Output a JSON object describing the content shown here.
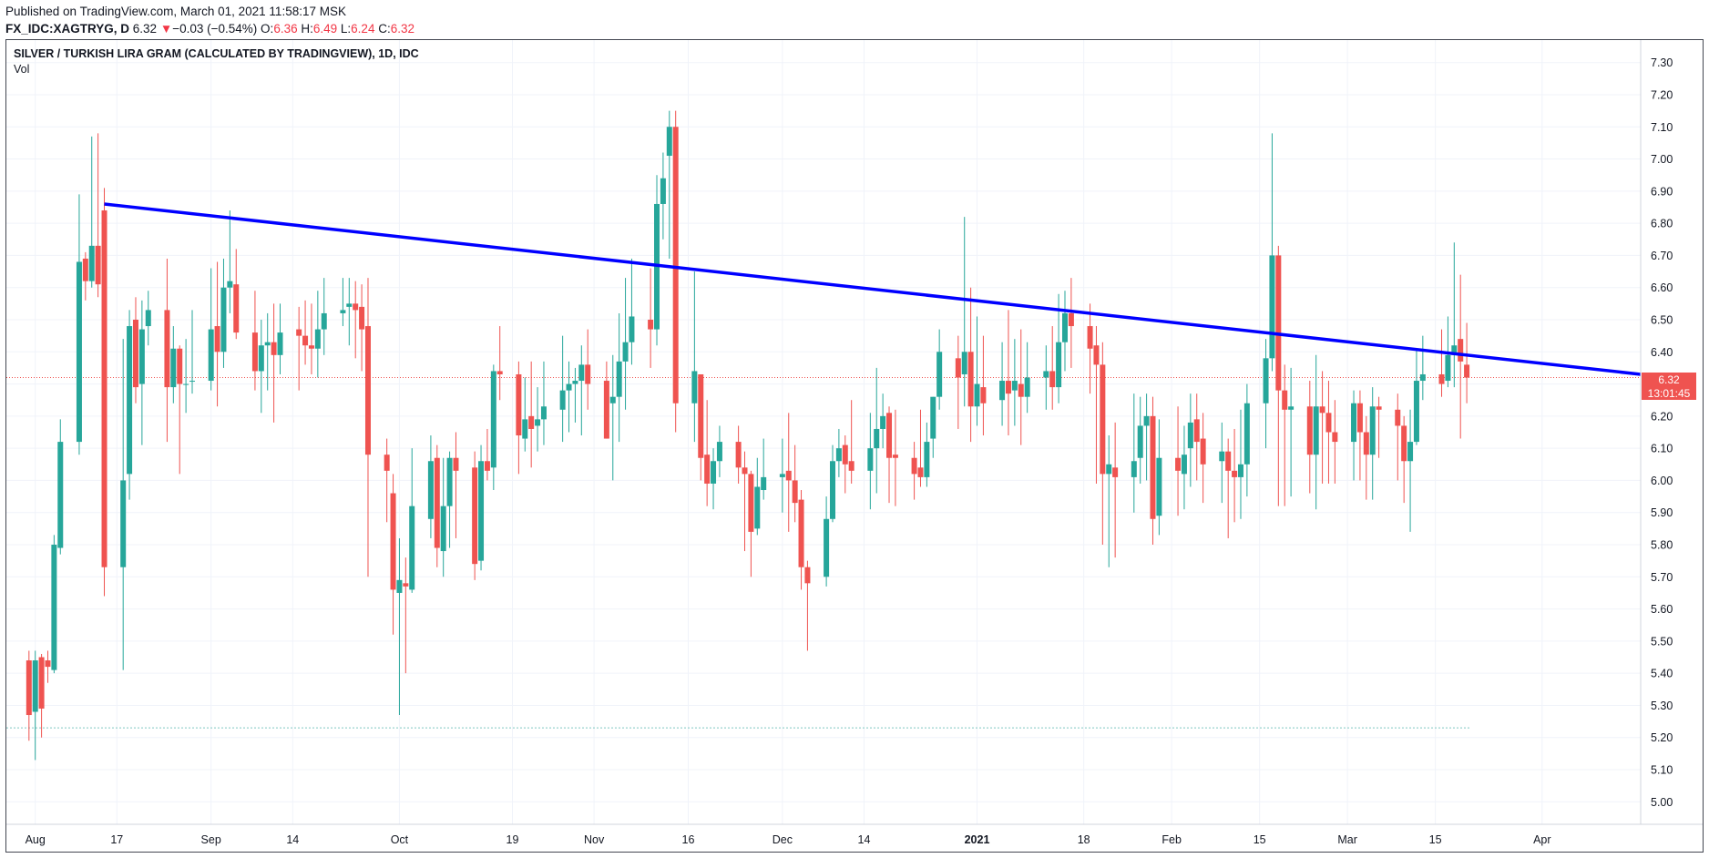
{
  "header": {
    "published": "Published on TradingView.com, March 01, 2021 11:58:17 MSK",
    "symbol": "FX_IDC:XAGTRYG, D",
    "last": "6.32",
    "arrow": "▼",
    "change": "−0.03 (−0.54%)",
    "o_label": "O:",
    "o": "6.36",
    "h_label": "H:",
    "h": "6.49",
    "l_label": "L:",
    "l": "6.24",
    "c_label": "C:",
    "c": "6.32"
  },
  "legend": {
    "title": "SILVER / TURKISH LIRA GRAM (CALCULATED BY TRADINGVIEW), 1D, IDC",
    "vol": "Vol"
  },
  "price_badge": {
    "price": "6.32",
    "countdown": "13:01:45"
  },
  "colors": {
    "up": "#26a69a",
    "down": "#ef5350",
    "trendline": "#0000ff",
    "badge": "#ef5350"
  },
  "chart_data": {
    "type": "candlestick",
    "symbol": "FX_IDC:XAGTRYG",
    "interval": "1D",
    "y_ticks": [
      "7.30",
      "7.20",
      "7.10",
      "7.00",
      "6.90",
      "6.80",
      "6.70",
      "6.60",
      "6.50",
      "6.40",
      "6.30",
      "6.20",
      "6.10",
      "6.00",
      "5.90",
      "5.80",
      "5.70",
      "5.60",
      "5.50",
      "5.40",
      "5.30",
      "5.20",
      "5.10",
      "5.00"
    ],
    "ylim": [
      4.93,
      7.37
    ],
    "x_ticks": [
      {
        "label": "Aug",
        "day": 0
      },
      {
        "label": "17",
        "day": 13
      },
      {
        "label": "Sep",
        "day": 28
      },
      {
        "label": "14",
        "day": 41
      },
      {
        "label": "Oct",
        "day": 58
      },
      {
        "label": "19",
        "day": 76
      },
      {
        "label": "Nov",
        "day": 89
      },
      {
        "label": "16",
        "day": 104
      },
      {
        "label": "Dec",
        "day": 119
      },
      {
        "label": "14",
        "day": 132
      },
      {
        "label": "2021",
        "day": 150
      },
      {
        "label": "18",
        "day": 167
      },
      {
        "label": "Feb",
        "day": 181
      },
      {
        "label": "15",
        "day": 195
      },
      {
        "label": "Mar",
        "day": 209
      },
      {
        "label": "15",
        "day": 223
      },
      {
        "label": "Apr",
        "day": 240
      }
    ],
    "x_start": "2020-07-27",
    "x_range_days": [
      -4.6,
      255.7
    ],
    "candles": [
      [
        -1,
        5.44,
        5.27,
        5.47,
        5.19
      ],
      [
        0,
        5.28,
        5.44,
        5.47,
        5.13
      ],
      [
        1,
        5.45,
        5.29,
        5.46,
        5.2
      ],
      [
        2,
        5.44,
        5.42,
        5.47,
        5.37
      ],
      [
        3,
        5.41,
        5.8,
        5.83,
        5.4
      ],
      [
        4,
        5.79,
        6.12,
        6.19,
        5.77
      ],
      [
        7,
        6.12,
        6.68,
        6.89,
        6.08
      ],
      [
        8,
        6.69,
        6.62,
        6.71,
        6.56
      ],
      [
        9,
        6.62,
        6.73,
        7.07,
        6.6
      ],
      [
        10,
        6.73,
        6.61,
        7.08,
        6.57
      ],
      [
        11,
        6.84,
        5.73,
        6.91,
        5.64
      ],
      [
        14,
        5.73,
        6.0,
        6.44,
        5.41
      ],
      [
        15,
        6.02,
        6.48,
        6.53,
        5.94
      ],
      [
        16,
        6.5,
        6.29,
        6.57,
        6.24
      ],
      [
        17,
        6.3,
        6.47,
        6.56,
        6.11
      ],
      [
        18,
        6.48,
        6.53,
        6.59,
        6.42
      ],
      [
        21,
        6.53,
        6.29,
        6.69,
        6.12
      ],
      [
        22,
        6.29,
        6.41,
        6.48,
        6.24
      ],
      [
        23,
        6.41,
        6.3,
        6.42,
        6.02
      ],
      [
        24,
        6.3,
        6.3,
        6.44,
        6.21
      ],
      [
        25,
        6.31,
        6.31,
        6.53,
        6.27
      ],
      [
        28,
        6.31,
        6.47,
        6.66,
        6.28
      ],
      [
        29,
        6.48,
        6.4,
        6.68,
        6.23
      ],
      [
        30,
        6.4,
        6.6,
        6.69,
        6.35
      ],
      [
        31,
        6.6,
        6.62,
        6.84,
        6.52
      ],
      [
        32,
        6.61,
        6.46,
        6.72,
        6.44
      ],
      [
        35,
        6.46,
        6.34,
        6.59,
        6.28
      ],
      [
        36,
        6.34,
        6.42,
        6.5,
        6.21
      ],
      [
        37,
        6.42,
        6.43,
        6.52,
        6.28
      ],
      [
        38,
        6.43,
        6.39,
        6.55,
        6.18
      ],
      [
        39,
        6.39,
        6.46,
        6.55,
        6.33
      ],
      [
        42,
        6.47,
        6.45,
        6.54,
        6.28
      ],
      [
        43,
        6.45,
        6.42,
        6.56,
        6.36
      ],
      [
        44,
        6.42,
        6.41,
        6.55,
        6.33
      ],
      [
        45,
        6.41,
        6.47,
        6.59,
        6.32
      ],
      [
        46,
        6.47,
        6.52,
        6.63,
        6.39
      ],
      [
        49,
        6.52,
        6.53,
        6.63,
        6.48
      ],
      [
        50,
        6.54,
        6.55,
        6.63,
        6.42
      ],
      [
        51,
        6.55,
        6.53,
        6.62,
        6.38
      ],
      [
        52,
        6.54,
        6.47,
        6.61,
        6.34
      ],
      [
        53,
        6.48,
        6.08,
        6.63,
        5.7
      ],
      [
        56,
        6.08,
        6.03,
        6.13,
        5.87
      ],
      [
        57,
        5.96,
        5.66,
        6.02,
        5.52
      ],
      [
        58,
        5.65,
        5.69,
        5.82,
        5.27
      ],
      [
        59,
        5.68,
        5.67,
        5.76,
        5.4
      ],
      [
        60,
        5.66,
        5.92,
        6.1,
        5.65
      ],
      [
        63,
        5.88,
        6.06,
        6.14,
        5.82
      ],
      [
        64,
        6.07,
        5.79,
        6.11,
        5.73
      ],
      [
        65,
        5.78,
        5.92,
        6.07,
        5.7
      ],
      [
        66,
        5.92,
        6.07,
        6.09,
        5.79
      ],
      [
        67,
        6.07,
        6.03,
        6.15,
        5.82
      ],
      [
        70,
        6.04,
        5.74,
        6.09,
        5.69
      ],
      [
        71,
        5.75,
        6.06,
        6.11,
        5.72
      ],
      [
        72,
        6.06,
        6.03,
        6.16,
        6.0
      ],
      [
        73,
        6.04,
        6.34,
        6.36,
        5.97
      ],
      [
        74,
        6.34,
        6.33,
        6.48,
        6.25
      ],
      [
        77,
        6.33,
        6.14,
        6.37,
        6.02
      ],
      [
        78,
        6.13,
        6.19,
        6.32,
        6.09
      ],
      [
        79,
        6.2,
        6.16,
        6.37,
        6.04
      ],
      [
        80,
        6.17,
        6.19,
        6.29,
        6.09
      ],
      [
        81,
        6.19,
        6.23,
        6.37,
        6.11
      ],
      [
        84,
        6.22,
        6.28,
        6.45,
        6.12
      ],
      [
        85,
        6.28,
        6.3,
        6.37,
        6.15
      ],
      [
        86,
        6.3,
        6.31,
        6.35,
        6.18
      ],
      [
        87,
        6.31,
        6.36,
        6.42,
        6.14
      ],
      [
        88,
        6.36,
        6.3,
        6.47,
        6.22
      ],
      [
        91,
        6.31,
        6.13,
        6.37,
        6.15
      ],
      [
        92,
        6.24,
        6.26,
        6.39,
        6.0
      ],
      [
        93,
        6.26,
        6.37,
        6.52,
        6.12
      ],
      [
        94,
        6.37,
        6.43,
        6.63,
        6.22
      ],
      [
        95,
        6.43,
        6.51,
        6.69,
        6.36
      ],
      [
        98,
        6.5,
        6.47,
        6.66,
        6.35
      ],
      [
        99,
        6.47,
        6.86,
        6.95,
        6.42
      ],
      [
        100,
        6.86,
        6.94,
        7.02,
        6.75
      ],
      [
        101,
        7.01,
        7.1,
        7.15,
        6.69
      ],
      [
        102,
        7.1,
        6.24,
        7.15,
        6.15
      ],
      [
        105,
        6.24,
        6.34,
        6.65,
        6.12
      ],
      [
        106,
        6.33,
        6.07,
        6.31,
        6.0
      ],
      [
        107,
        6.08,
        5.99,
        6.25,
        5.92
      ],
      [
        108,
        5.99,
        6.06,
        6.1,
        5.91
      ],
      [
        109,
        6.06,
        6.12,
        6.17,
        6.01
      ],
      [
        112,
        6.12,
        6.04,
        6.17,
        5.99
      ],
      [
        113,
        6.04,
        6.02,
        6.09,
        5.78
      ],
      [
        114,
        6.02,
        5.84,
        6.03,
        5.7
      ],
      [
        115,
        5.85,
        5.98,
        6.07,
        5.83
      ],
      [
        116,
        5.97,
        6.01,
        6.13,
        5.94
      ],
      [
        119,
        6.01,
        6.02,
        6.13,
        5.9
      ],
      [
        120,
        6.03,
        6.0,
        6.21,
        5.84
      ],
      [
        121,
        6.0,
        5.93,
        6.11,
        5.87
      ],
      [
        122,
        5.94,
        5.73,
        5.97,
        5.66
      ],
      [
        123,
        5.73,
        5.68,
        5.75,
        5.47
      ],
      [
        126,
        5.7,
        5.88,
        5.95,
        5.67
      ],
      [
        127,
        5.88,
        6.06,
        6.11,
        5.87
      ],
      [
        128,
        6.06,
        6.1,
        6.16,
        6.01
      ],
      [
        129,
        6.11,
        6.05,
        6.14,
        5.96
      ],
      [
        130,
        6.06,
        6.03,
        6.25,
        5.99
      ],
      [
        133,
        6.03,
        6.1,
        6.21,
        5.91
      ],
      [
        134,
        6.1,
        6.16,
        6.35,
        5.96
      ],
      [
        135,
        6.16,
        6.2,
        6.27,
        6.1
      ],
      [
        136,
        6.21,
        6.07,
        6.23,
        5.93
      ],
      [
        137,
        6.08,
        6.07,
        6.22,
        5.92
      ],
      [
        140,
        6.07,
        6.02,
        6.12,
        5.94
      ],
      [
        141,
        6.04,
        6.01,
        6.22,
        5.98
      ],
      [
        142,
        6.01,
        6.12,
        6.18,
        5.98
      ],
      [
        143,
        6.13,
        6.26,
        6.25,
        6.07
      ],
      [
        144,
        6.26,
        6.4,
        6.47,
        6.22
      ],
      [
        147,
        6.38,
        6.32,
        6.45,
        6.16
      ],
      [
        148,
        6.33,
        6.4,
        6.82,
        6.23
      ],
      [
        149,
        6.4,
        6.23,
        6.6,
        6.12
      ],
      [
        150,
        6.23,
        6.3,
        6.51,
        6.17
      ],
      [
        151,
        6.29,
        6.24,
        6.45,
        6.14
      ],
      [
        154,
        6.25,
        6.31,
        6.43,
        6.17
      ],
      [
        155,
        6.31,
        6.27,
        6.53,
        6.14
      ],
      [
        156,
        6.28,
        6.31,
        6.44,
        6.17
      ],
      [
        157,
        6.3,
        6.26,
        6.47,
        6.11
      ],
      [
        158,
        6.26,
        6.32,
        6.43,
        6.21
      ],
      [
        161,
        6.32,
        6.34,
        6.42,
        6.22
      ],
      [
        162,
        6.34,
        6.29,
        6.48,
        6.22
      ],
      [
        163,
        6.29,
        6.43,
        6.58,
        6.24
      ],
      [
        164,
        6.43,
        6.52,
        6.59,
        6.34
      ],
      [
        165,
        6.52,
        6.48,
        6.63,
        6.35
      ],
      [
        168,
        6.48,
        6.41,
        6.55,
        6.27
      ],
      [
        169,
        6.42,
        6.36,
        6.48,
        5.99
      ],
      [
        170,
        6.36,
        6.02,
        6.43,
        5.8
      ],
      [
        171,
        6.02,
        6.05,
        6.14,
        5.73
      ],
      [
        172,
        6.04,
        6.01,
        6.18,
        5.76
      ],
      [
        175,
        6.01,
        6.06,
        6.27,
        5.9
      ],
      [
        176,
        6.07,
        6.17,
        6.26,
        5.99
      ],
      [
        177,
        6.17,
        6.2,
        6.27,
        6.0
      ],
      [
        178,
        6.2,
        5.88,
        6.26,
        5.8
      ],
      [
        179,
        5.89,
        6.07,
        6.19,
        5.83
      ],
      [
        182,
        6.07,
        6.03,
        6.23,
        5.89
      ],
      [
        183,
        6.02,
        6.08,
        6.17,
        5.91
      ],
      [
        184,
        6.1,
        6.18,
        6.27,
        5.98
      ],
      [
        185,
        6.19,
        6.12,
        6.27,
        6.0
      ],
      [
        186,
        6.13,
        6.05,
        6.21,
        5.93
      ],
      [
        189,
        6.06,
        6.09,
        6.18,
        5.93
      ],
      [
        190,
        6.09,
        6.03,
        6.13,
        5.82
      ],
      [
        191,
        6.03,
        6.01,
        6.16,
        5.87
      ],
      [
        192,
        6.01,
        6.05,
        6.22,
        5.88
      ],
      [
        193,
        6.05,
        6.24,
        6.3,
        5.95
      ],
      [
        196,
        6.24,
        6.38,
        6.44,
        6.1
      ],
      [
        197,
        6.38,
        6.7,
        7.08,
        6.34
      ],
      [
        198,
        6.7,
        6.28,
        6.73,
        5.92
      ],
      [
        199,
        6.28,
        6.22,
        6.36,
        5.92
      ],
      [
        200,
        6.22,
        6.23,
        6.35,
        5.95
      ],
      [
        203,
        6.23,
        6.08,
        6.31,
        5.96
      ],
      [
        204,
        6.08,
        6.23,
        6.39,
        5.91
      ],
      [
        205,
        6.23,
        6.21,
        6.34,
        5.99
      ],
      [
        206,
        6.21,
        6.15,
        6.31,
        5.99
      ],
      [
        207,
        6.15,
        6.12,
        6.25,
        5.99
      ],
      [
        210,
        6.12,
        6.24,
        6.28,
        6.0
      ],
      [
        211,
        6.24,
        6.15,
        6.28,
        6.0
      ],
      [
        212,
        6.15,
        6.08,
        6.2,
        5.94
      ],
      [
        213,
        6.08,
        6.23,
        6.29,
        5.94
      ],
      [
        214,
        6.23,
        6.22,
        6.26,
        6.07
      ],
      [
        217,
        6.22,
        6.17,
        6.27,
        6.0
      ],
      [
        218,
        6.17,
        6.06,
        6.2,
        5.93
      ],
      [
        219,
        6.06,
        6.12,
        6.22,
        5.84
      ],
      [
        220,
        6.12,
        6.31,
        6.41,
        6.11
      ],
      [
        221,
        6.31,
        6.33,
        6.45,
        6.25
      ],
      [
        224,
        6.33,
        6.3,
        6.47,
        6.26
      ],
      [
        225,
        6.31,
        6.39,
        6.51,
        6.29
      ],
      [
        226,
        6.39,
        6.42,
        6.74,
        6.29
      ],
      [
        227,
        6.44,
        6.37,
        6.64,
        6.13
      ],
      [
        228,
        6.36,
        6.32,
        6.49,
        6.24
      ]
    ],
    "trendline": {
      "from": {
        "day": 11,
        "price": 6.86
      },
      "to_right_edge_price": 6.33
    },
    "last_price": 6.32,
    "horizontal_level": 5.23
  }
}
